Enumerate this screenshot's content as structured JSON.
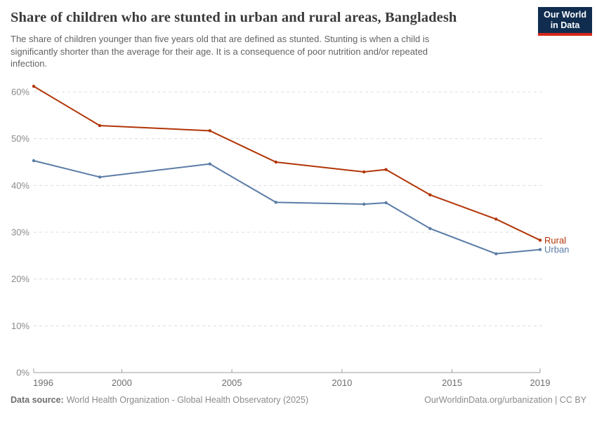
{
  "header": {
    "title": "Share of children who are stunted in urban and rural areas, Bangladesh",
    "subtitle_lines": [
      "The share of children younger than five years old that are defined as stunted. Stunting is when a child is",
      "significantly shorter than the average for their age. It is a consequence of poor nutrition and/or repeated",
      "infection."
    ],
    "logo": {
      "line1": "Our World",
      "line2": "in Data",
      "bg_color": "#102d50",
      "accent_color": "#d5271c"
    }
  },
  "chart_data": {
    "type": "line",
    "title": "Share of children who are stunted in urban and rural areas, Bangladesh",
    "x": [
      1996,
      1999,
      2004,
      2007,
      2011,
      2012,
      2014,
      2017,
      2019
    ],
    "series": [
      {
        "name": "Rural",
        "color": "#b13507",
        "values": [
          61.2,
          52.8,
          51.7,
          45.0,
          42.9,
          43.4,
          38.0,
          32.8,
          28.3
        ]
      },
      {
        "name": "Urban",
        "color": "#5b7ca6",
        "values": [
          45.3,
          41.8,
          44.6,
          36.4,
          36.0,
          36.3,
          30.8,
          25.4,
          26.3
        ]
      }
    ],
    "xlim": [
      1996,
      2019
    ],
    "ylim": [
      0,
      60
    ],
    "xticks": [
      1996,
      2000,
      2005,
      2010,
      2015,
      2019
    ],
    "yticks": [
      0,
      10,
      20,
      30,
      40,
      50,
      60
    ],
    "ytick_suffix": "%",
    "grid": "horizontal-dashed",
    "legend_position": "line-end-labels",
    "style": {
      "grid_color": "#dcdcdc",
      "axis_color": "#9e9e9e",
      "ytick_label_color": "#8a8a8a",
      "xtick_label_color": "#6e6e6e"
    }
  },
  "footer": {
    "source_label": "Data source:",
    "source_text": "World Health Organization - Global Health Observatory (2025)",
    "attribution": "OurWorldinData.org/urbanization | CC BY"
  }
}
